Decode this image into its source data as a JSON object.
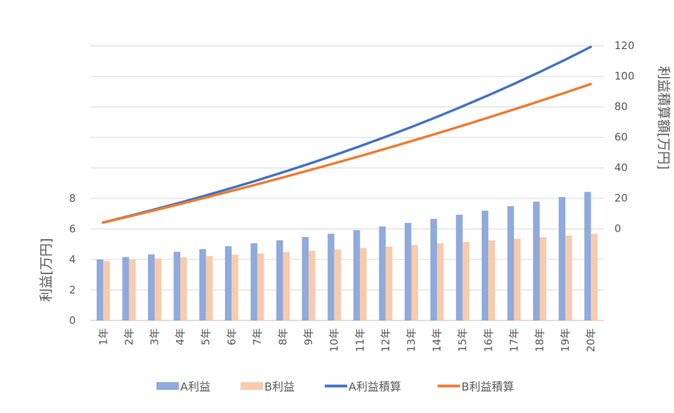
{
  "chart_data": {
    "type": "bar",
    "categories": [
      "1年",
      "2年",
      "3年",
      "4年",
      "5年",
      "6年",
      "7年",
      "8年",
      "9年",
      "10年",
      "11年",
      "12年",
      "13年",
      "14年",
      "15年",
      "16年",
      "17年",
      "18年",
      "19年",
      "20年"
    ],
    "series": [
      {
        "name": "A利益",
        "type": "bar",
        "axis": "left",
        "values": [
          4.0,
          4.16,
          4.33,
          4.5,
          4.68,
          4.87,
          5.06,
          5.26,
          5.47,
          5.69,
          5.92,
          6.16,
          6.4,
          6.66,
          6.93,
          7.2,
          7.49,
          7.79,
          8.1,
          8.43
        ]
      },
      {
        "name": "B利益",
        "type": "bar",
        "axis": "left",
        "values": [
          3.9,
          3.98,
          4.06,
          4.14,
          4.22,
          4.31,
          4.39,
          4.48,
          4.57,
          4.66,
          4.75,
          4.85,
          4.95,
          5.05,
          5.15,
          5.25,
          5.35,
          5.46,
          5.57,
          5.68
        ]
      },
      {
        "name": "A利益積算",
        "type": "line",
        "axis": "right",
        "values": [
          4.0,
          8.16,
          12.49,
          16.99,
          21.67,
          26.54,
          31.6,
          36.86,
          42.33,
          48.02,
          53.94,
          60.1,
          66.5,
          73.16,
          80.09,
          87.29,
          94.78,
          102.57,
          110.67,
          119.1
        ]
      },
      {
        "name": "B利益積算",
        "type": "line",
        "axis": "right",
        "values": [
          3.9,
          7.88,
          11.94,
          16.08,
          20.3,
          24.61,
          29.0,
          33.48,
          38.05,
          42.71,
          47.46,
          52.31,
          57.26,
          62.31,
          67.46,
          72.71,
          78.06,
          83.52,
          89.09,
          94.77
        ]
      }
    ],
    "y_left": {
      "label": "利益[万円]",
      "range": [
        0,
        8
      ],
      "ticks": [
        0,
        2,
        4,
        6,
        8
      ]
    },
    "y_right": {
      "label": "利益積算額[万円]",
      "range": [
        0,
        120
      ],
      "ticks": [
        0,
        20,
        40,
        60,
        80,
        100,
        120
      ]
    },
    "grid": true,
    "legend_position": "bottom",
    "colors": {
      "A利益": "#8faadc",
      "B利益": "#f8cbad",
      "A利益積算": "#4472c4",
      "B利益積算": "#ed7d31",
      "grid": "#d9d9d9",
      "text": "#595959"
    }
  }
}
